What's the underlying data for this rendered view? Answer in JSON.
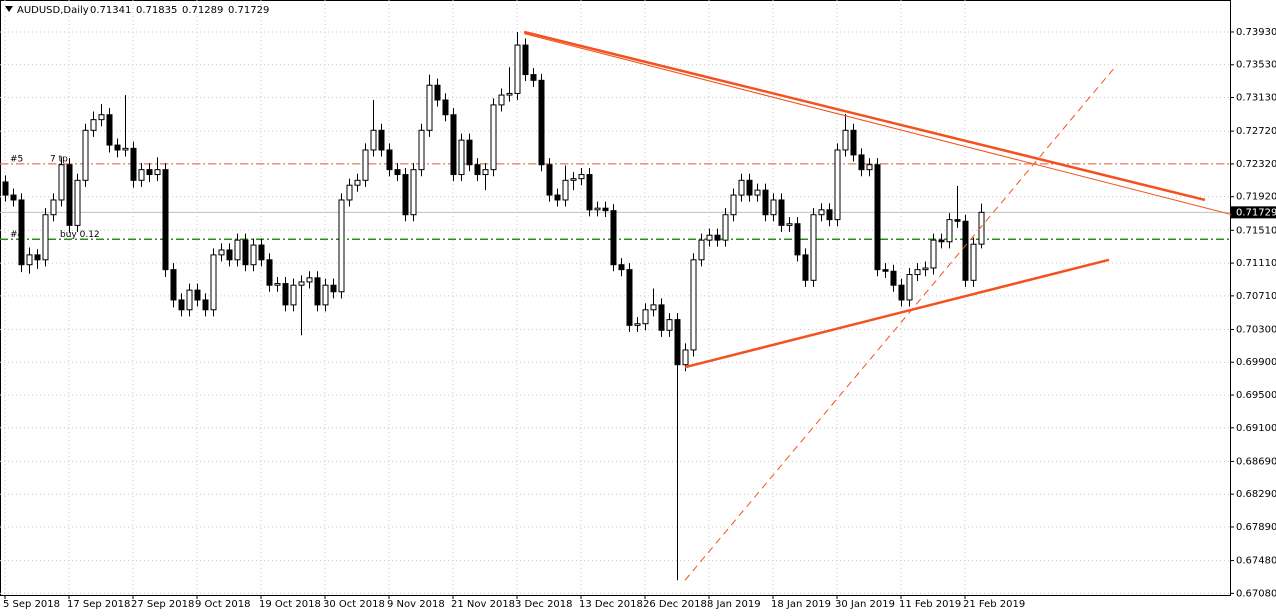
{
  "chart_data": {
    "type": "candlestick",
    "symbol": "AUDUSD,Daily",
    "categories": [
      "5 Sep 2018",
      null,
      null,
      null,
      null,
      null,
      null,
      null,
      "17 Sep 2018",
      null,
      null,
      null,
      null,
      null,
      null,
      null,
      "27 Sep 2018",
      null,
      null,
      null,
      null,
      null,
      null,
      null,
      "9 Oct 2018",
      null,
      null,
      null,
      null,
      null,
      null,
      null,
      "19 Oct 2018",
      null,
      null,
      null,
      null,
      null,
      null,
      null,
      "30 Oct 2018",
      null,
      null,
      null,
      null,
      null,
      null,
      null,
      "9 Nov 2018",
      null,
      null,
      null,
      null,
      null,
      null,
      null,
      "21 Nov 2018",
      null,
      null,
      null,
      null,
      null,
      null,
      null,
      "3 Dec 2018",
      null,
      null,
      null,
      null,
      null,
      null,
      null,
      "13 Dec 2018",
      null,
      null,
      null,
      null,
      null,
      null,
      null,
      "26 Dec 2018",
      null,
      null,
      null,
      null,
      null,
      null,
      null,
      "8 Jan 2019",
      null,
      null,
      null,
      null,
      null,
      null,
      null,
      "18 Jan 2019",
      null,
      null,
      null,
      null,
      null,
      null,
      null,
      "30 Jan 2019",
      null,
      null,
      null,
      null,
      null,
      null,
      null,
      "11 Feb 2019",
      null,
      null,
      null,
      null,
      null,
      null,
      null,
      "21 Feb 2019",
      null,
      null
    ],
    "open": [
      0.721,
      0.7194,
      0.7188,
      0.7109,
      0.7121,
      0.7115,
      0.717,
      0.7188,
      0.7231,
      0.7157,
      0.7212,
      0.7273,
      0.7286,
      0.7292,
      0.7255,
      0.7249,
      0.7251,
      0.7212,
      0.7225,
      0.7219,
      0.7225,
      0.7103,
      0.7066,
      0.7054,
      0.7078,
      0.7066,
      0.7054,
      0.7121,
      0.7127,
      0.7115,
      0.7139,
      0.7109,
      0.7133,
      0.7115,
      0.7084,
      0.7086,
      0.706,
      0.7084,
      0.7088,
      0.7093,
      0.706,
      0.7084,
      0.7076,
      0.7188,
      0.7206,
      0.7212,
      0.7249,
      0.7273,
      0.7249,
      0.7225,
      0.7219,
      0.717,
      0.7225,
      0.7273,
      0.7328,
      0.731,
      0.7292,
      0.7219,
      0.7261,
      0.7231,
      0.7219,
      0.7225,
      0.7304,
      0.7316,
      0.7318,
      0.7377,
      0.7341,
      0.7334,
      0.7231,
      0.7194,
      0.7188,
      0.7212,
      0.7214,
      0.7219,
      0.7176,
      0.7178,
      0.7175,
      0.7109,
      0.7103,
      0.7035,
      0.7037,
      0.7054,
      0.706,
      0.7029,
      0.7042,
      0.6987,
      0.7005,
      0.7115,
      0.7139,
      0.7145,
      0.7139,
      0.717,
      0.7194,
      0.7212,
      0.7194,
      0.72,
      0.717,
      0.7188,
      0.7157,
      0.7159,
      0.7121,
      0.709,
      0.717,
      0.7176,
      0.7164,
      0.7249,
      0.7273,
      0.7243,
      0.7225,
      0.7231,
      0.7103,
      0.7101,
      0.7084,
      0.7066,
      0.7097,
      0.7103,
      0.7105,
      0.7139,
      0.7137,
      0.7164,
      0.7162,
      0.709,
      0.71341
    ],
    "high": [
      0.7218,
      0.7202,
      0.7196,
      0.713,
      0.7128,
      0.7178,
      0.7196,
      0.724,
      0.7239,
      0.722,
      0.7281,
      0.7296,
      0.7305,
      0.73,
      0.7263,
      0.7316,
      0.7259,
      0.7233,
      0.7233,
      0.724,
      0.7233,
      0.7111,
      0.7074,
      0.7086,
      0.7086,
      0.7074,
      0.7129,
      0.7135,
      0.7135,
      0.7147,
      0.7147,
      0.7141,
      0.7141,
      0.7123,
      0.7094,
      0.7094,
      0.7092,
      0.7096,
      0.7101,
      0.7101,
      0.7092,
      0.7092,
      0.7196,
      0.7214,
      0.722,
      0.7257,
      0.731,
      0.7281,
      0.7257,
      0.7233,
      0.7227,
      0.7233,
      0.7281,
      0.7341,
      0.7336,
      0.7318,
      0.73,
      0.7269,
      0.7269,
      0.7239,
      0.7233,
      0.7312,
      0.7324,
      0.735,
      0.7393,
      0.7385,
      0.7349,
      0.7342,
      0.7239,
      0.7202,
      0.723,
      0.7222,
      0.7227,
      0.7227,
      0.7186,
      0.7186,
      0.7183,
      0.7117,
      0.7111,
      0.7045,
      0.7062,
      0.708,
      0.7068,
      0.705,
      0.705,
      0.7013,
      0.7123,
      0.7147,
      0.7153,
      0.7153,
      0.7178,
      0.7202,
      0.722,
      0.722,
      0.7208,
      0.7208,
      0.7196,
      0.7196,
      0.7167,
      0.7167,
      0.7129,
      0.7178,
      0.7184,
      0.7184,
      0.7257,
      0.7293,
      0.7281,
      0.7251,
      0.7239,
      0.7239,
      0.7111,
      0.7109,
      0.7092,
      0.7105,
      0.7111,
      0.7113,
      0.7147,
      0.7147,
      0.7172,
      0.7205,
      0.717,
      0.7142,
      0.71835
    ],
    "low": [
      0.7186,
      0.718,
      0.71,
      0.7098,
      0.7104,
      0.7107,
      0.7162,
      0.718,
      0.7148,
      0.7149,
      0.7204,
      0.7265,
      0.7278,
      0.7246,
      0.724,
      0.7241,
      0.7203,
      0.7204,
      0.721,
      0.7211,
      0.7094,
      0.7057,
      0.7046,
      0.7046,
      0.7058,
      0.7046,
      0.7046,
      0.7113,
      0.7107,
      0.7107,
      0.7101,
      0.7101,
      0.7107,
      0.7076,
      0.7076,
      0.7052,
      0.7052,
      0.7023,
      0.708,
      0.7052,
      0.7052,
      0.7068,
      0.7068,
      0.718,
      0.7198,
      0.7204,
      0.7241,
      0.7241,
      0.7217,
      0.7211,
      0.7162,
      0.7162,
      0.7217,
      0.7265,
      0.7302,
      0.7284,
      0.7211,
      0.7211,
      0.7223,
      0.7211,
      0.72,
      0.7217,
      0.7296,
      0.7308,
      0.731,
      0.7333,
      0.7326,
      0.7223,
      0.7186,
      0.718,
      0.718,
      0.72,
      0.7206,
      0.7168,
      0.7168,
      0.7167,
      0.7101,
      0.7095,
      0.7027,
      0.7027,
      0.7029,
      0.7046,
      0.7021,
      0.7021,
      0.6724,
      0.6979,
      0.6997,
      0.7107,
      0.7131,
      0.7131,
      0.7131,
      0.7162,
      0.7186,
      0.7186,
      0.7186,
      0.7162,
      0.7162,
      0.7149,
      0.7149,
      0.7113,
      0.7082,
      0.7082,
      0.7162,
      0.7156,
      0.7156,
      0.7241,
      0.7235,
      0.7217,
      0.7217,
      0.7095,
      0.7093,
      0.7076,
      0.7058,
      0.7058,
      0.7089,
      0.7095,
      0.7097,
      0.7129,
      0.7129,
      0.7154,
      0.7082,
      0.7082,
      0.71289
    ],
    "close": [
      0.7194,
      0.7188,
      0.7109,
      0.7121,
      0.7115,
      0.717,
      0.7188,
      0.7231,
      0.7157,
      0.7212,
      0.7273,
      0.7286,
      0.7292,
      0.7255,
      0.7249,
      0.7251,
      0.7212,
      0.7225,
      0.7219,
      0.7225,
      0.7103,
      0.7066,
      0.7054,
      0.7078,
      0.7066,
      0.7054,
      0.7121,
      0.7127,
      0.7115,
      0.7139,
      0.7109,
      0.7133,
      0.7115,
      0.7084,
      0.7086,
      0.706,
      0.7084,
      0.7088,
      0.7093,
      0.706,
      0.7084,
      0.7076,
      0.7188,
      0.7206,
      0.7212,
      0.7249,
      0.7273,
      0.7249,
      0.7225,
      0.7219,
      0.717,
      0.7225,
      0.7273,
      0.7328,
      0.731,
      0.7292,
      0.7219,
      0.7261,
      0.7231,
      0.7219,
      0.7225,
      0.7304,
      0.7316,
      0.7318,
      0.7377,
      0.7341,
      0.7334,
      0.7231,
      0.7194,
      0.7188,
      0.7212,
      0.7214,
      0.7219,
      0.7176,
      0.7178,
      0.7175,
      0.7109,
      0.7103,
      0.7035,
      0.7037,
      0.7054,
      0.706,
      0.7029,
      0.7042,
      0.6987,
      0.7005,
      0.7115,
      0.7139,
      0.7145,
      0.7139,
      0.717,
      0.7194,
      0.7212,
      0.7194,
      0.72,
      0.717,
      0.7188,
      0.7157,
      0.7159,
      0.7121,
      0.709,
      0.717,
      0.7176,
      0.7164,
      0.7249,
      0.7273,
      0.7243,
      0.7225,
      0.7231,
      0.7103,
      0.7101,
      0.7084,
      0.7066,
      0.7097,
      0.7103,
      0.7105,
      0.7139,
      0.7137,
      0.7164,
      0.7162,
      0.709,
      0.7134,
      0.71729
    ],
    "up_color": "#ffffff",
    "down_color": "#000000",
    "wick_color": "#000000",
    "ylim": [
      0.6706,
      0.7432
    ],
    "yticks": [
      {
        "value": 0.7393,
        "label": "0.73930"
      },
      {
        "value": 0.7353,
        "label": "0.73530"
      },
      {
        "value": 0.7313,
        "label": "0.73130"
      },
      {
        "value": 0.7272,
        "label": "0.72720"
      },
      {
        "value": 0.7232,
        "label": "0.72320"
      },
      {
        "value": 0.7192,
        "label": "0.71920"
      },
      {
        "value": 0.7151,
        "label": "0.71510"
      },
      {
        "value": 0.7111,
        "label": "0.71110"
      },
      {
        "value": 0.7071,
        "label": "0.70710"
      },
      {
        "value": 0.703,
        "label": "0.70300"
      },
      {
        "value": 0.699,
        "label": "0.69900"
      },
      {
        "value": 0.695,
        "label": "0.69500"
      },
      {
        "value": 0.691,
        "label": "0.69100"
      },
      {
        "value": 0.6869,
        "label": "0.68690"
      },
      {
        "value": 0.6829,
        "label": "0.68290"
      },
      {
        "value": 0.6789,
        "label": "0.67890"
      },
      {
        "value": 0.6748,
        "label": "0.67480"
      },
      {
        "value": 0.6708,
        "label": "0.67080"
      }
    ],
    "grid": true,
    "levels": [
      {
        "value": 0.7232,
        "color": "#e8553a",
        "labels": [
          "#5",
          "7 tp"
        ]
      },
      {
        "value": 0.714,
        "color": "#2e8b1e",
        "labels": [
          "#4",
          "buy 0.12"
        ]
      }
    ],
    "trendlines": [
      {
        "x": [
          64.9,
          150
        ],
        "y": [
          0.7393,
          0.7188
        ],
        "color": "#f4511e",
        "style": "thick"
      },
      {
        "x": [
          64.9,
          153.4
        ],
        "y": [
          0.7391,
          0.717
        ],
        "color": "#f4511e",
        "style": "thin"
      },
      {
        "x": [
          85,
          138
        ],
        "y": [
          0.6984,
          0.7115
        ],
        "color": "#f4511e",
        "style": "thick"
      },
      {
        "x": [
          85,
          139
        ],
        "y": [
          0.6724,
          0.7353
        ],
        "color": "#f4511e",
        "style": "dashed"
      }
    ]
  }
}
